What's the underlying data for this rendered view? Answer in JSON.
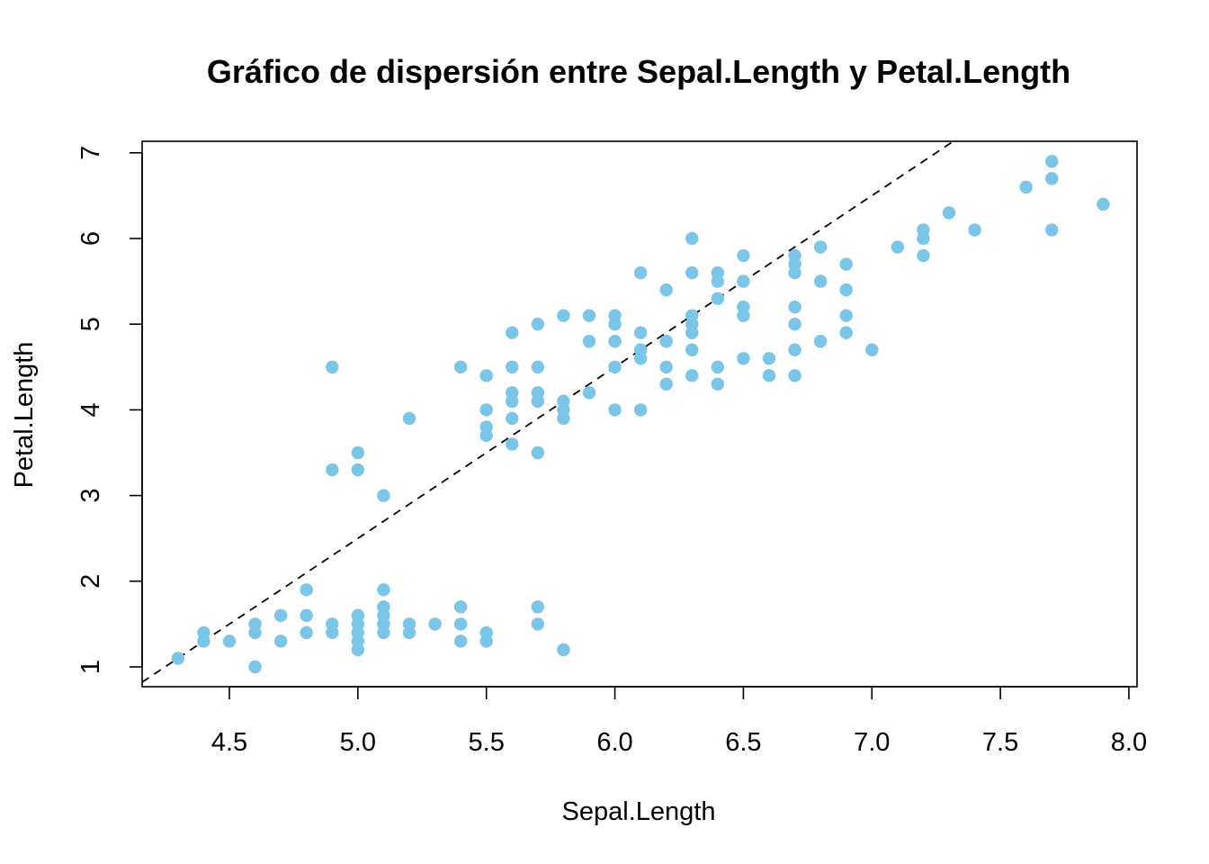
{
  "chart_data": {
    "type": "scatter",
    "title": "Gráfico de dispersión entre Sepal.Length y Petal.Length",
    "xlabel": "Sepal.Length",
    "ylabel": "Petal.Length",
    "xlim": [
      4.2,
      8.0
    ],
    "ylim": [
      0.78,
      7.14
    ],
    "xticks": [
      4.5,
      5.0,
      5.5,
      6.0,
      6.5,
      7.0,
      7.5,
      8.0
    ],
    "xtick_labels": [
      "4.5",
      "5.0",
      "5.5",
      "6.0",
      "6.5",
      "7.0",
      "7.5",
      "8.0"
    ],
    "yticks": [
      1,
      2,
      3,
      4,
      5,
      6,
      7
    ],
    "ytick_labels": [
      "1",
      "2",
      "3",
      "4",
      "5",
      "6",
      "7"
    ],
    "grid": false,
    "point_color": "#7AC5E8",
    "trend_line": {
      "style": "dashed",
      "color": "#000000",
      "slope": 2.0,
      "intercept": -7.5
    },
    "points": [
      [
        4.3,
        1.1
      ],
      [
        4.4,
        1.4
      ],
      [
        4.4,
        1.3
      ],
      [
        4.5,
        1.3
      ],
      [
        4.6,
        1.5
      ],
      [
        4.6,
        1.4
      ],
      [
        4.6,
        1.0
      ],
      [
        4.7,
        1.6
      ],
      [
        4.7,
        1.3
      ],
      [
        4.8,
        1.9
      ],
      [
        4.8,
        1.6
      ],
      [
        4.8,
        1.4
      ],
      [
        4.9,
        1.5
      ],
      [
        4.9,
        1.4
      ],
      [
        4.9,
        4.5
      ],
      [
        4.9,
        3.3
      ],
      [
        5.0,
        1.6
      ],
      [
        5.0,
        1.5
      ],
      [
        5.0,
        1.4
      ],
      [
        5.0,
        1.3
      ],
      [
        5.0,
        1.2
      ],
      [
        5.0,
        3.5
      ],
      [
        5.0,
        3.3
      ],
      [
        5.1,
        1.9
      ],
      [
        5.1,
        1.7
      ],
      [
        5.1,
        1.6
      ],
      [
        5.1,
        1.5
      ],
      [
        5.1,
        1.4
      ],
      [
        5.1,
        3.0
      ],
      [
        5.2,
        1.5
      ],
      [
        5.2,
        1.4
      ],
      [
        5.2,
        3.9
      ],
      [
        5.3,
        1.5
      ],
      [
        5.4,
        1.7
      ],
      [
        5.4,
        1.5
      ],
      [
        5.4,
        1.3
      ],
      [
        5.4,
        4.5
      ],
      [
        5.5,
        1.4
      ],
      [
        5.5,
        1.3
      ],
      [
        5.5,
        4.4
      ],
      [
        5.5,
        4.0
      ],
      [
        5.5,
        3.8
      ],
      [
        5.5,
        3.7
      ],
      [
        5.6,
        4.9
      ],
      [
        5.6,
        4.5
      ],
      [
        5.6,
        4.2
      ],
      [
        5.6,
        4.1
      ],
      [
        5.6,
        3.9
      ],
      [
        5.6,
        3.6
      ],
      [
        5.7,
        1.7
      ],
      [
        5.7,
        1.5
      ],
      [
        5.7,
        5.0
      ],
      [
        5.7,
        4.5
      ],
      [
        5.7,
        4.2
      ],
      [
        5.7,
        4.1
      ],
      [
        5.7,
        3.5
      ],
      [
        5.8,
        1.2
      ],
      [
        5.8,
        5.1
      ],
      [
        5.8,
        4.1
      ],
      [
        5.8,
        4.0
      ],
      [
        5.8,
        3.9
      ],
      [
        5.9,
        5.1
      ],
      [
        5.9,
        4.8
      ],
      [
        5.9,
        4.2
      ],
      [
        6.0,
        5.1
      ],
      [
        6.0,
        5.0
      ],
      [
        6.0,
        4.8
      ],
      [
        6.0,
        4.5
      ],
      [
        6.0,
        4.0
      ],
      [
        6.1,
        5.6
      ],
      [
        6.1,
        4.9
      ],
      [
        6.1,
        4.7
      ],
      [
        6.1,
        4.6
      ],
      [
        6.1,
        4.0
      ],
      [
        6.2,
        5.4
      ],
      [
        6.2,
        4.8
      ],
      [
        6.2,
        4.5
      ],
      [
        6.2,
        4.3
      ],
      [
        6.3,
        6.0
      ],
      [
        6.3,
        5.6
      ],
      [
        6.3,
        5.1
      ],
      [
        6.3,
        5.0
      ],
      [
        6.3,
        4.9
      ],
      [
        6.3,
        4.7
      ],
      [
        6.3,
        4.4
      ],
      [
        6.4,
        5.6
      ],
      [
        6.4,
        5.5
      ],
      [
        6.4,
        5.3
      ],
      [
        6.4,
        4.5
      ],
      [
        6.4,
        4.3
      ],
      [
        6.5,
        5.8
      ],
      [
        6.5,
        5.5
      ],
      [
        6.5,
        5.2
      ],
      [
        6.5,
        5.1
      ],
      [
        6.5,
        4.6
      ],
      [
        6.6,
        4.6
      ],
      [
        6.6,
        4.4
      ],
      [
        6.7,
        5.8
      ],
      [
        6.7,
        5.7
      ],
      [
        6.7,
        5.6
      ],
      [
        6.7,
        5.2
      ],
      [
        6.7,
        5.0
      ],
      [
        6.7,
        4.7
      ],
      [
        6.7,
        4.4
      ],
      [
        6.8,
        5.9
      ],
      [
        6.8,
        5.5
      ],
      [
        6.8,
        4.8
      ],
      [
        6.9,
        5.7
      ],
      [
        6.9,
        5.4
      ],
      [
        6.9,
        5.1
      ],
      [
        6.9,
        4.9
      ],
      [
        7.0,
        4.7
      ],
      [
        7.1,
        5.9
      ],
      [
        7.2,
        6.1
      ],
      [
        7.2,
        6.0
      ],
      [
        7.2,
        5.8
      ],
      [
        7.3,
        6.3
      ],
      [
        7.4,
        6.1
      ],
      [
        7.6,
        6.6
      ],
      [
        7.7,
        6.9
      ],
      [
        7.7,
        6.7
      ],
      [
        7.7,
        6.1
      ],
      [
        7.9,
        6.4
      ]
    ]
  }
}
